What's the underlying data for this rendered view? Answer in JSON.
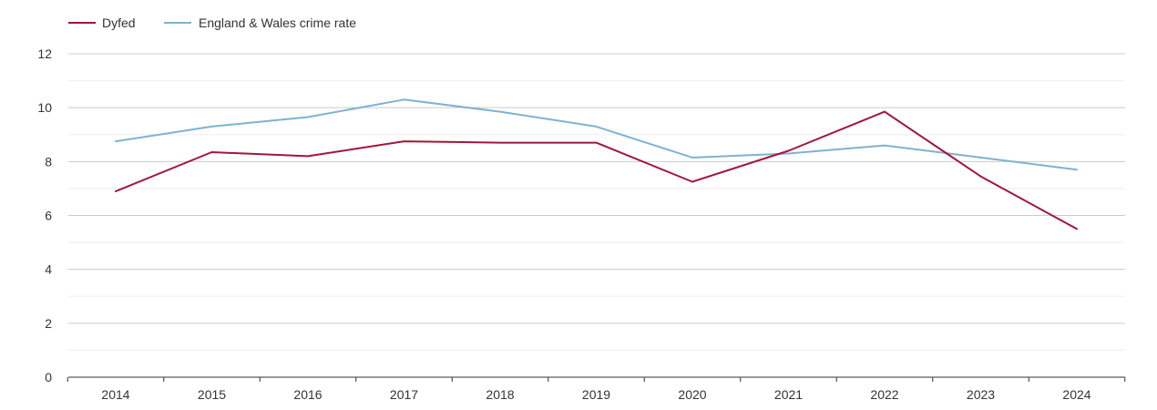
{
  "chart_data": {
    "type": "line",
    "title": "",
    "xlabel": "",
    "ylabel": "",
    "x": [
      "2014",
      "2015",
      "2016",
      "2017",
      "2018",
      "2019",
      "2020",
      "2021",
      "2022",
      "2023",
      "2024"
    ],
    "ylim": [
      0,
      12
    ],
    "yticks": [
      "0",
      "2",
      "4",
      "6",
      "8",
      "10",
      "12"
    ],
    "grid": true,
    "legend_position": "top-left",
    "series": [
      {
        "name": "Dyfed",
        "color": "#a0173a",
        "values": [
          6.9,
          8.35,
          8.2,
          8.75,
          8.7,
          8.7,
          7.25,
          8.4,
          9.85,
          7.45,
          5.5
        ]
      },
      {
        "name": "England & Wales crime rate",
        "color": "#7fb2d0",
        "values": [
          8.75,
          9.3,
          9.65,
          10.3,
          9.85,
          9.3,
          8.15,
          8.3,
          8.6,
          8.15,
          7.7
        ]
      }
    ]
  }
}
